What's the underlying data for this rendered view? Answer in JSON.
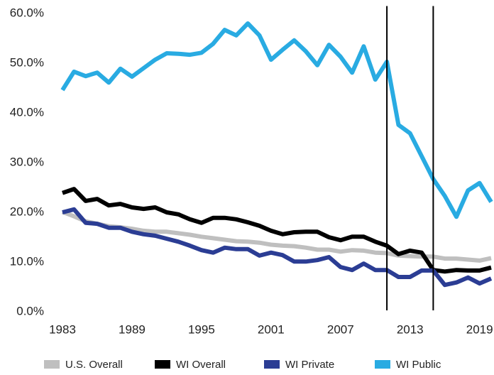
{
  "chart_data": {
    "type": "line",
    "x": [
      1983,
      1984,
      1985,
      1986,
      1987,
      1988,
      1989,
      1990,
      1991,
      1992,
      1993,
      1994,
      1995,
      1996,
      1997,
      1998,
      1999,
      2000,
      2001,
      2002,
      2003,
      2004,
      2005,
      2006,
      2007,
      2008,
      2009,
      2010,
      2011,
      2012,
      2013,
      2014,
      2015,
      2016,
      2017,
      2018,
      2019,
      2020
    ],
    "xlim": [
      1983,
      2020
    ],
    "xticks": [
      1983,
      1989,
      1995,
      2001,
      2007,
      2013,
      2019
    ],
    "ylim": [
      0,
      61.5
    ],
    "yticks": [
      {
        "value": 0,
        "label": "0.0%"
      },
      {
        "value": 10,
        "label": "10.0%"
      },
      {
        "value": 20,
        "label": "20.0%"
      },
      {
        "value": 30,
        "label": "30.0%"
      },
      {
        "value": 40,
        "label": "40.0%"
      },
      {
        "value": 50,
        "label": "50.0%"
      },
      {
        "value": 60,
        "label": "60.0%"
      }
    ],
    "grid": false,
    "vlines": [
      2011,
      2015
    ],
    "legend": "bottom",
    "series": [
      {
        "name": "U.S. Overall",
        "color": "#bfbfbf",
        "values": [
          20.1,
          19.2,
          18.2,
          17.7,
          17.2,
          17,
          16.7,
          16.3,
          16.1,
          16.1,
          15.8,
          15.5,
          15.1,
          14.8,
          14.5,
          14.2,
          14.1,
          13.9,
          13.5,
          13.3,
          13.2,
          12.9,
          12.5,
          12.5,
          12.1,
          12.4,
          12.3,
          11.9,
          11.8,
          11.3,
          11.2,
          11.1,
          11.1,
          10.7,
          10.7,
          10.5,
          10.3,
          10.8
        ]
      },
      {
        "name": "WI Overall",
        "color": "#000000",
        "values": [
          23.9,
          24.7,
          22.3,
          22.7,
          21.4,
          21.7,
          21,
          20.7,
          21,
          20,
          19.6,
          18.6,
          17.9,
          18.9,
          18.9,
          18.6,
          18,
          17.3,
          16.3,
          15.6,
          16,
          16.1,
          16.1,
          15,
          14.4,
          15.1,
          15.1,
          14.1,
          13.3,
          11.6,
          12.3,
          11.9,
          8.4,
          8.1,
          8.4,
          8.3,
          8.3,
          8.9
        ]
      },
      {
        "name": "WI Private",
        "color": "#2b3d94",
        "values": [
          20,
          20.6,
          17.9,
          17.7,
          16.9,
          16.9,
          16.1,
          15.6,
          15.3,
          14.7,
          14.1,
          13.3,
          12.4,
          11.9,
          12.9,
          12.6,
          12.6,
          11.3,
          11.9,
          11.4,
          10.1,
          10.1,
          10.4,
          11,
          9,
          8.4,
          9.7,
          8.4,
          8.4,
          7,
          7,
          8.3,
          8.3,
          5.4,
          5.9,
          6.9,
          5.7,
          6.7
        ]
      },
      {
        "name": "WI Public",
        "color": "#29abe2",
        "values": [
          44.6,
          48.3,
          47.4,
          48.1,
          46.1,
          48.9,
          47.3,
          49,
          50.7,
          52,
          51.9,
          51.7,
          52.1,
          53.9,
          56.7,
          55.6,
          58,
          55.6,
          50.7,
          52.7,
          54.6,
          52.4,
          49.6,
          53.7,
          51.3,
          48.1,
          53.4,
          46.7,
          50.3,
          37.6,
          35.9,
          31.3,
          26.7,
          23.3,
          19.1,
          24.4,
          25.9,
          22.1
        ]
      }
    ]
  }
}
